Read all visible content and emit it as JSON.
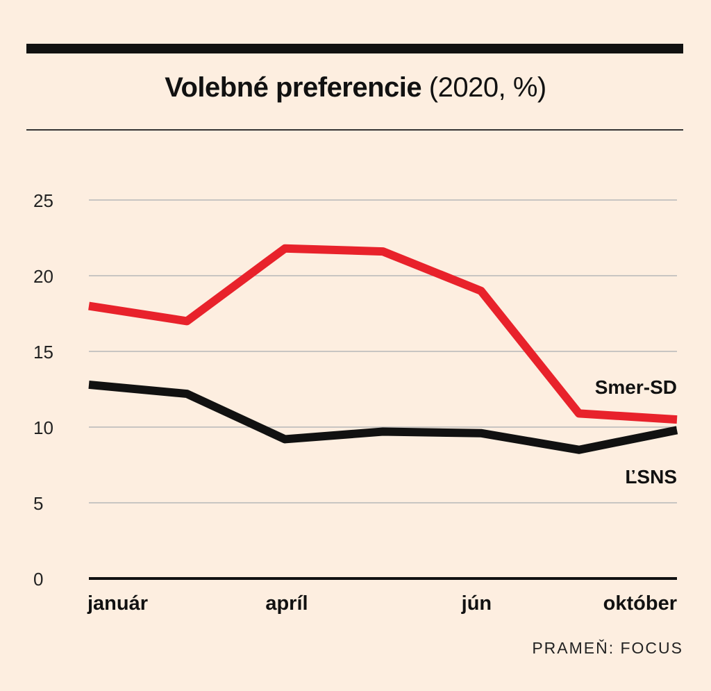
{
  "title": {
    "bold": "Volebné preferencie",
    "normal": "(2020, %)"
  },
  "source": "PRAMEŇ: FOCUS",
  "colors": {
    "background": "#fdeee0",
    "smer": "#e8222b",
    "lsns": "#111111",
    "grid": "#b7b7b7"
  },
  "chart_data": {
    "type": "line",
    "title": "Volebné preferencie (2020, %)",
    "xlabel": "",
    "ylabel": "",
    "ylim": [
      0,
      25
    ],
    "yticks": [
      0,
      5,
      10,
      15,
      20,
      25
    ],
    "x": [
      1,
      2,
      3,
      4,
      5,
      6,
      7
    ],
    "xtick_labels": [
      {
        "x": 1,
        "label": "január"
      },
      {
        "x": 3,
        "label": "apríl"
      },
      {
        "x": 5,
        "label": "jún"
      },
      {
        "x": 7,
        "label": "október"
      }
    ],
    "series": [
      {
        "name": "Smer-SD",
        "color": "#e8222b",
        "values": [
          18.0,
          17.0,
          21.8,
          21.6,
          19.0,
          10.9,
          10.5
        ]
      },
      {
        "name": "ĽSNS",
        "color": "#111111",
        "values": [
          12.8,
          12.2,
          9.2,
          9.7,
          9.6,
          8.5,
          9.8
        ]
      }
    ],
    "grid": true,
    "legend": "inline labels at right end of each line"
  }
}
